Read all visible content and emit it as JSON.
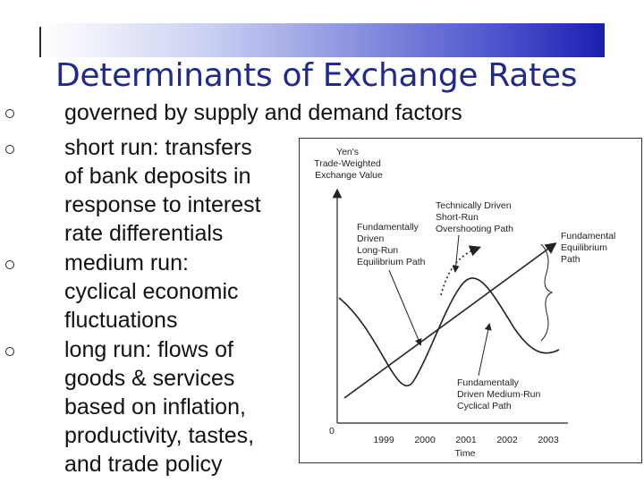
{
  "slide": {
    "title": "Determinants of Exchange Rates",
    "bullets": [
      {
        "text": "governed by supply and demand factors"
      },
      {
        "text": "short run: transfers\nof bank deposits in\nresponse to interest\nrate differentials"
      },
      {
        "text": "medium run:\ncyclical economic\nfluctuations"
      },
      {
        "text": "long run: flows of\ngoods & services\nbased on inflation,\nproductivity, tastes,\nand trade policy"
      }
    ]
  },
  "diagram": {
    "y_axis_label": [
      "Yen's",
      "Trade-Weighted",
      "Exchange Value"
    ],
    "x_axis_label": "Time",
    "origin_label": "0",
    "x_ticks": [
      "1999",
      "2000",
      "2001",
      "2002",
      "2003"
    ],
    "labels": {
      "short_run": [
        "Technically Driven",
        "Short-Run",
        "Overshooting Path"
      ],
      "long_run": [
        "Fundamentally",
        "Driven",
        "Long-Run",
        "Equilibrium Path"
      ],
      "fundamental_equilibrium": [
        "Fundamental",
        "Equilibrium",
        "Path"
      ],
      "medium_run": [
        "Fundamentally",
        "Driven Medium-Run",
        "Cyclical Path"
      ]
    }
  }
}
